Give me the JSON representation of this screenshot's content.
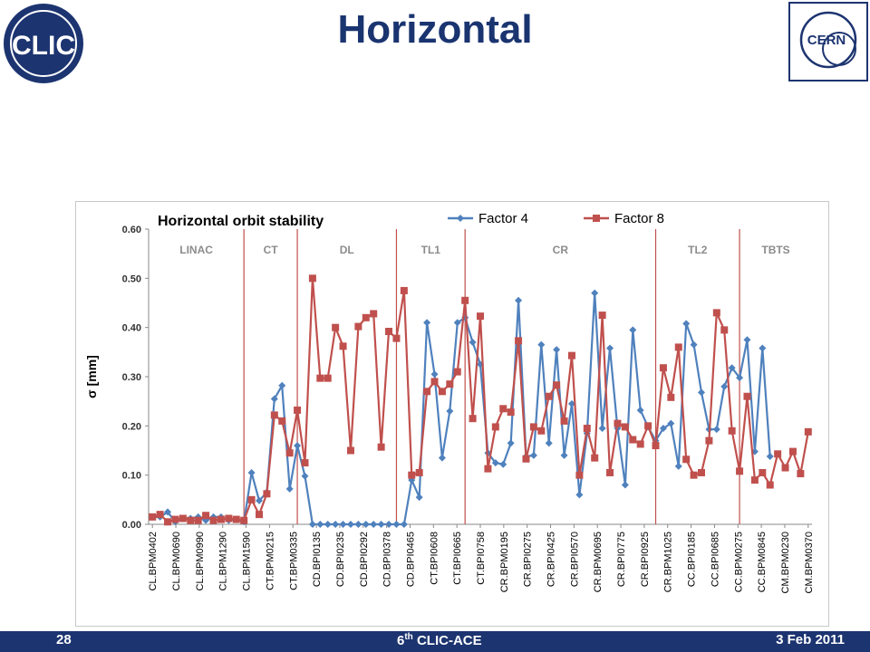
{
  "slide": {
    "title": "Horizontal",
    "clic_logo_text": "CLIC",
    "cern_logo_text": "CERN"
  },
  "footer": {
    "page": "28",
    "conference_prefix": "6",
    "conference_sup": "th",
    "conference_suffix": " CLIC-ACE",
    "date": "3 Feb 2011"
  },
  "colors": {
    "title": "#1a3470",
    "footer_bg": "#1c3470",
    "factor4": "#4f81bd",
    "factor8": "#c0504d",
    "divider": "#c0504d",
    "section_label": "#8c8c8c"
  },
  "chart_data": {
    "type": "line",
    "title": "Horizontal orbit stability",
    "ylabel": "σ [mm]",
    "xlabel": "",
    "ylim": [
      0,
      0.6
    ],
    "yticks": [
      "0.00",
      "0.10",
      "0.20",
      "0.30",
      "0.40",
      "0.50",
      "0.60"
    ],
    "legend_position": "top-center",
    "grid": false,
    "x_tick_labels": [
      "CL.BPM0402",
      "CL.BPM0690",
      "CL.BPM0990",
      "CL.BPM1290",
      "CL.BPM1590",
      "CT.BPM0215",
      "CT.BPM0335",
      "CD.BPI0135",
      "CD.BPI0235",
      "CD.BPI0292",
      "CD.BPI0378",
      "CD.BPI0465",
      "CT.BPI0608",
      "CT.BPI0665",
      "CT.BPI0758",
      "CR.BPM0195",
      "CR.BPI0275",
      "CR.BPI0425",
      "CR.BPI0570",
      "CR.BPM0695",
      "CR.BPI0775",
      "CR.BPI0925",
      "CR.BPM1025",
      "CC.BPI0185",
      "CC.BPI0685",
      "CC.BPM0275",
      "CC.BPM0845",
      "CM.BPM0230",
      "CM.BPM0370"
    ],
    "sections": [
      {
        "label": "LINAC",
        "start": 0,
        "end": 12.5
      },
      {
        "label": "CT",
        "start": 12.5,
        "end": 19.5
      },
      {
        "label": "DL",
        "start": 19.5,
        "end": 32.5
      },
      {
        "label": "TL1",
        "start": 32.5,
        "end": 41.5
      },
      {
        "label": "CR",
        "start": 41.5,
        "end": 66.5
      },
      {
        "label": "TL2",
        "start": 66.5,
        "end": 77.5
      },
      {
        "label": "TBTS",
        "start": 77.5,
        "end": 87
      }
    ],
    "series": [
      {
        "name": "Factor 4",
        "values": [
          0.015,
          0.015,
          0.025,
          0.005,
          0.012,
          0.012,
          0.015,
          0.008,
          0.015,
          0.015,
          0.008,
          0.01,
          0.005,
          0.105,
          0.048,
          0.065,
          0.255,
          0.282,
          0.072,
          0.16,
          0.098,
          0.0,
          0.0,
          0.0,
          0.0,
          0.0,
          0.0,
          0.0,
          0.0,
          0.0,
          0.0,
          0.0,
          0.0,
          0.0,
          0.09,
          0.055,
          0.41,
          0.305,
          0.135,
          0.23,
          0.41,
          0.42,
          0.37,
          0.325,
          0.145,
          0.125,
          0.122,
          0.165,
          0.455,
          0.138,
          0.14,
          0.365,
          0.165,
          0.355,
          0.14,
          0.245,
          0.06,
          0.185,
          0.47,
          0.195,
          0.358,
          0.195,
          0.08,
          0.395,
          0.232,
          0.198,
          0.17,
          0.195,
          0.205,
          0.118,
          0.408,
          0.365,
          0.268,
          0.193,
          0.193,
          0.28,
          0.318,
          0.298,
          0.375,
          0.148,
          0.358,
          0.138
        ],
        "x_start": 0
      },
      {
        "name": "Factor 8",
        "values": [
          0.015,
          0.02,
          0.005,
          0.01,
          0.012,
          0.008,
          0.008,
          0.018,
          0.008,
          0.01,
          0.012,
          0.01,
          0.008,
          0.05,
          0.02,
          0.062,
          0.222,
          0.21,
          0.145,
          0.232,
          0.125,
          0.5,
          0.297,
          0.297,
          0.4,
          0.362,
          0.15,
          0.402,
          0.42,
          0.428,
          0.157,
          0.392,
          0.378,
          0.475,
          0.1,
          0.105,
          0.27,
          0.29,
          0.27,
          0.285,
          0.31,
          0.455,
          0.215,
          0.423,
          0.113,
          0.198,
          0.235,
          0.228,
          0.373,
          0.133,
          0.198,
          0.19,
          0.26,
          0.283,
          0.21,
          0.343,
          0.1,
          0.195,
          0.135,
          0.425,
          0.105,
          0.205,
          0.198,
          0.172,
          0.163,
          0.2,
          0.16,
          0.318,
          0.258,
          0.36,
          0.132,
          0.1,
          0.105,
          0.17,
          0.43,
          0.395,
          0.19,
          0.108,
          0.26,
          0.09,
          0.105,
          0.08,
          0.143,
          0.115,
          0.148,
          0.103,
          0.188
        ],
        "x_start": 0
      }
    ]
  }
}
